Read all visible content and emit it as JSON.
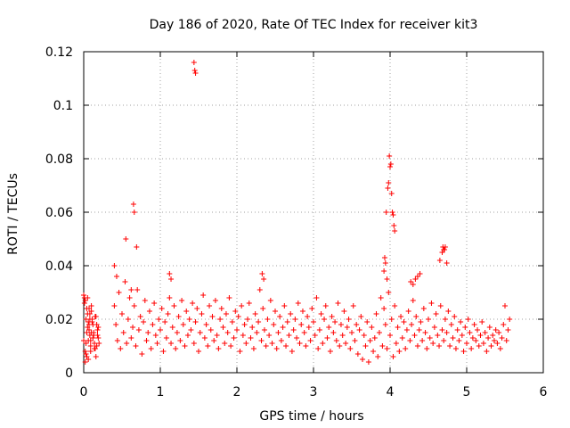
{
  "chart_data": {
    "type": "scatter",
    "title": "Day 186 of 2020, Rate Of TEC Index for receiver kit3",
    "xlabel": "GPS time / hours",
    "ylabel": "ROTI / TECUs",
    "xlim": [
      0,
      6
    ],
    "ylim": [
      0,
      0.12
    ],
    "xticks": [
      0,
      1,
      2,
      3,
      4,
      5,
      6
    ],
    "xtick_labels": [
      "0",
      "1",
      "2",
      "3",
      "4",
      "5",
      "6"
    ],
    "yticks": [
      0,
      0.02,
      0.04,
      0.06,
      0.08,
      0.1,
      0.12
    ],
    "ytick_labels": [
      "0",
      "0.02",
      "0.04",
      "0.06",
      "0.08",
      "0.1",
      "0.12"
    ],
    "grid": true,
    "marker": "plus",
    "color": "#ff0000",
    "series": [
      {
        "name": "ROTI",
        "x": [
          0.0,
          0.01,
          0.02,
          0.03,
          0.04,
          0.05,
          0.06,
          0.07,
          0.08,
          0.09,
          0.1,
          0.12,
          0.14,
          0.16,
          0.18,
          0.2,
          0.02,
          0.04,
          0.06,
          0.08,
          0.1,
          0.03,
          0.05,
          0.07,
          0.09,
          0.11,
          0.13,
          0.15,
          0.17,
          0.19,
          0.01,
          0.03,
          0.05,
          0.07,
          0.09,
          0.11,
          0.13,
          0.15,
          0.17,
          0.19,
          0.0,
          0.02,
          0.04,
          0.06,
          0.08,
          0.1,
          0.12,
          0.14,
          0.16,
          0.18,
          0.4,
          0.42,
          0.44,
          0.46,
          0.48,
          0.5,
          0.52,
          0.54,
          0.56,
          0.58,
          0.6,
          0.62,
          0.64,
          0.66,
          0.68,
          0.7,
          0.72,
          0.74,
          0.76,
          0.78,
          0.8,
          0.82,
          0.84,
          0.86,
          0.88,
          0.9,
          0.92,
          0.94,
          0.96,
          0.98,
          1.0,
          1.02,
          1.04,
          1.06,
          1.08,
          1.1,
          1.12,
          1.14,
          1.16,
          1.18,
          1.2,
          1.22,
          1.24,
          1.26,
          1.28,
          1.3,
          1.32,
          1.34,
          1.36,
          1.38,
          1.4,
          1.42,
          1.44,
          1.46,
          1.48,
          1.5,
          1.52,
          1.54,
          1.56,
          1.58,
          1.6,
          1.62,
          1.64,
          1.66,
          1.68,
          1.7,
          1.72,
          1.74,
          1.76,
          1.78,
          1.8,
          1.82,
          1.84,
          1.86,
          1.88,
          1.9,
          1.92,
          1.94,
          1.96,
          1.98,
          2.0,
          2.02,
          2.04,
          2.06,
          2.08,
          2.1,
          2.12,
          2.14,
          2.16,
          2.18,
          2.2,
          2.22,
          2.24,
          2.26,
          2.28,
          2.3,
          2.32,
          2.34,
          2.36,
          2.38,
          2.4,
          2.42,
          2.44,
          2.46,
          2.48,
          2.5,
          2.52,
          2.54,
          2.56,
          2.58,
          2.6,
          2.62,
          2.64,
          2.66,
          2.68,
          2.7,
          2.72,
          2.74,
          2.76,
          2.78,
          2.8,
          2.82,
          2.84,
          2.86,
          2.88,
          2.9,
          2.92,
          2.94,
          2.96,
          2.98,
          3.0,
          3.02,
          3.04,
          3.06,
          3.08,
          3.1,
          3.12,
          3.14,
          3.16,
          3.18,
          3.2,
          3.22,
          3.24,
          3.26,
          3.28,
          3.3,
          3.32,
          3.34,
          3.36,
          3.38,
          3.4,
          3.42,
          3.44,
          3.46,
          3.48,
          3.5,
          3.52,
          3.54,
          3.56,
          3.58,
          3.6,
          3.62,
          3.64,
          3.66,
          3.68,
          3.7,
          3.72,
          3.74,
          3.76,
          3.78,
          3.8,
          3.82,
          3.84,
          3.86,
          3.88,
          3.9,
          3.92,
          3.94,
          3.96,
          3.98,
          4.0,
          4.02,
          4.04,
          4.06,
          4.08,
          4.1,
          4.12,
          4.14,
          4.16,
          4.18,
          4.2,
          4.22,
          4.24,
          4.26,
          4.28,
          4.3,
          4.32,
          4.34,
          4.36,
          4.38,
          4.4,
          4.42,
          4.44,
          4.46,
          4.48,
          4.5,
          4.52,
          4.54,
          4.56,
          4.58,
          4.6,
          4.62,
          4.64,
          4.66,
          4.68,
          4.7,
          4.72,
          4.74,
          4.76,
          4.78,
          4.8,
          4.82,
          4.84,
          4.86,
          4.88,
          4.9,
          4.92,
          4.94,
          4.96,
          4.98,
          5.0,
          5.02,
          5.04,
          5.06,
          5.08,
          5.1,
          5.12,
          5.14,
          5.16,
          5.18,
          5.2,
          5.22,
          5.24,
          5.26,
          5.28,
          5.3,
          5.32,
          5.34,
          5.36,
          5.38,
          5.4,
          5.42,
          5.44,
          5.46,
          5.48,
          5.5,
          5.52,
          5.54,
          5.56,
          1.44,
          1.45,
          1.46,
          0.55,
          0.65,
          0.66,
          0.69,
          0.4,
          0.43,
          3.95,
          3.97,
          3.98,
          3.99,
          4.0,
          4.01,
          4.02,
          4.03,
          4.04,
          4.05,
          4.06,
          3.93,
          3.94,
          4.68,
          4.69,
          4.7,
          4.71,
          4.72,
          4.74,
          4.65,
          3.92,
          3.96,
          4.27,
          4.3,
          4.33,
          4.36,
          4.39,
          2.33,
          2.35,
          0.62,
          1.12,
          1.14
        ],
        "y": [
          0.012,
          0.026,
          0.008,
          0.02,
          0.015,
          0.028,
          0.005,
          0.018,
          0.022,
          0.01,
          0.025,
          0.013,
          0.009,
          0.021,
          0.016,
          0.011,
          0.027,
          0.006,
          0.019,
          0.014,
          0.023,
          0.007,
          0.017,
          0.024,
          0.012,
          0.02,
          0.015,
          0.009,
          0.018,
          0.013,
          0.028,
          0.011,
          0.022,
          0.016,
          0.008,
          0.019,
          0.014,
          0.021,
          0.01,
          0.017,
          0.029,
          0.004,
          0.024,
          0.012,
          0.02,
          0.015,
          0.018,
          0.011,
          0.006,
          0.014,
          0.025,
          0.018,
          0.012,
          0.03,
          0.009,
          0.022,
          0.015,
          0.034,
          0.011,
          0.02,
          0.028,
          0.013,
          0.017,
          0.025,
          0.01,
          0.031,
          0.016,
          0.021,
          0.007,
          0.019,
          0.027,
          0.012,
          0.015,
          0.023,
          0.009,
          0.018,
          0.026,
          0.014,
          0.011,
          0.02,
          0.016,
          0.024,
          0.008,
          0.019,
          0.013,
          0.022,
          0.028,
          0.011,
          0.017,
          0.025,
          0.009,
          0.015,
          0.021,
          0.012,
          0.027,
          0.018,
          0.01,
          0.023,
          0.014,
          0.02,
          0.016,
          0.026,
          0.011,
          0.019,
          0.024,
          0.008,
          0.015,
          0.022,
          0.029,
          0.013,
          0.018,
          0.01,
          0.025,
          0.016,
          0.021,
          0.012,
          0.027,
          0.014,
          0.009,
          0.02,
          0.024,
          0.017,
          0.011,
          0.022,
          0.015,
          0.028,
          0.01,
          0.019,
          0.013,
          0.023,
          0.016,
          0.021,
          0.008,
          0.025,
          0.014,
          0.018,
          0.011,
          0.02,
          0.026,
          0.013,
          0.017,
          0.009,
          0.022,
          0.015,
          0.019,
          0.031,
          0.012,
          0.024,
          0.016,
          0.01,
          0.02,
          0.014,
          0.027,
          0.011,
          0.018,
          0.023,
          0.009,
          0.015,
          0.021,
          0.012,
          0.017,
          0.025,
          0.01,
          0.019,
          0.014,
          0.022,
          0.008,
          0.016,
          0.02,
          0.013,
          0.026,
          0.011,
          0.018,
          0.023,
          0.015,
          0.01,
          0.021,
          0.017,
          0.012,
          0.024,
          0.019,
          0.014,
          0.028,
          0.009,
          0.016,
          0.022,
          0.011,
          0.02,
          0.025,
          0.013,
          0.017,
          0.008,
          0.021,
          0.015,
          0.019,
          0.012,
          0.026,
          0.01,
          0.018,
          0.014,
          0.023,
          0.011,
          0.017,
          0.02,
          0.009,
          0.015,
          0.025,
          0.012,
          0.018,
          0.007,
          0.016,
          0.021,
          0.005,
          0.014,
          0.01,
          0.019,
          0.004,
          0.012,
          0.017,
          0.008,
          0.013,
          0.022,
          0.006,
          0.015,
          0.028,
          0.01,
          0.024,
          0.018,
          0.009,
          0.03,
          0.014,
          0.02,
          0.006,
          0.025,
          0.011,
          0.017,
          0.008,
          0.021,
          0.013,
          0.019,
          0.009,
          0.016,
          0.023,
          0.012,
          0.018,
          0.027,
          0.014,
          0.021,
          0.01,
          0.016,
          0.019,
          0.012,
          0.024,
          0.015,
          0.009,
          0.02,
          0.013,
          0.026,
          0.011,
          0.017,
          0.022,
          0.014,
          0.01,
          0.025,
          0.016,
          0.012,
          0.02,
          0.015,
          0.023,
          0.01,
          0.018,
          0.013,
          0.021,
          0.009,
          0.016,
          0.012,
          0.019,
          0.014,
          0.008,
          0.017,
          0.011,
          0.02,
          0.015,
          0.009,
          0.013,
          0.018,
          0.012,
          0.016,
          0.01,
          0.014,
          0.019,
          0.011,
          0.015,
          0.008,
          0.013,
          0.017,
          0.01,
          0.014,
          0.012,
          0.016,
          0.011,
          0.015,
          0.009,
          0.013,
          0.018,
          0.025,
          0.012,
          0.016,
          0.02,
          0.116,
          0.113,
          0.112,
          0.05,
          0.063,
          0.06,
          0.047,
          0.04,
          0.036,
          0.06,
          0.069,
          0.071,
          0.081,
          0.077,
          0.078,
          0.067,
          0.06,
          0.059,
          0.055,
          0.053,
          0.043,
          0.041,
          0.045,
          0.047,
          0.046,
          0.046,
          0.047,
          0.041,
          0.042,
          0.038,
          0.035,
          0.034,
          0.033,
          0.035,
          0.036,
          0.037,
          0.037,
          0.035,
          0.031,
          0.037,
          0.035
        ]
      }
    ]
  }
}
